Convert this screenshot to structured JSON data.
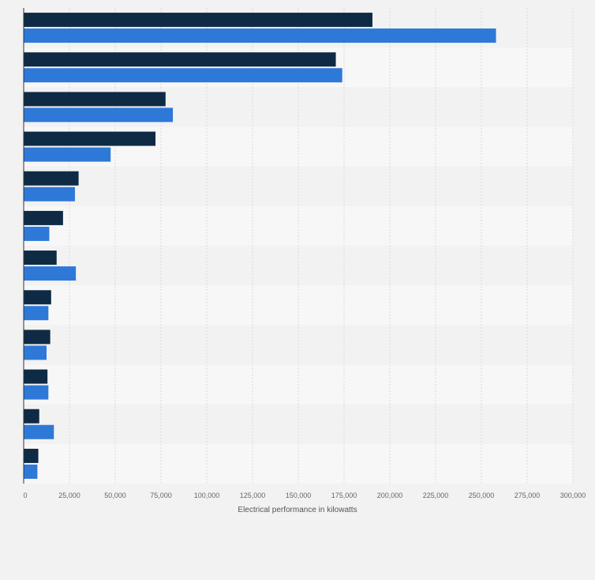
{
  "chart_data": {
    "type": "bar",
    "orientation": "horizontal",
    "title": "",
    "xlabel": "Electrical performance in kilowatts",
    "ylabel": "",
    "xlim": [
      0,
      300000
    ],
    "x_ticks": [
      0,
      25000,
      50000,
      75000,
      100000,
      125000,
      150000,
      175000,
      200000,
      225000,
      250000,
      275000,
      300000
    ],
    "x_tick_labels": [
      "0",
      "25,000",
      "50,000",
      "75,000",
      "100,000",
      "125,000",
      "150,000",
      "175,000",
      "200,000",
      "225,000",
      "250,000",
      "275,000",
      "300,000"
    ],
    "grid": true,
    "legend": "none",
    "category_count": 12,
    "series": [
      {
        "color": "#0f2a45",
        "values": [
          190500,
          170500,
          77500,
          72000,
          30000,
          21500,
          18000,
          15000,
          14500,
          13000,
          8500,
          8000
        ]
      },
      {
        "color": "#2e78d8",
        "values": [
          258000,
          174000,
          81500,
          47500,
          28000,
          14000,
          28500,
          13500,
          12500,
          13500,
          16500,
          7500
        ]
      }
    ]
  }
}
